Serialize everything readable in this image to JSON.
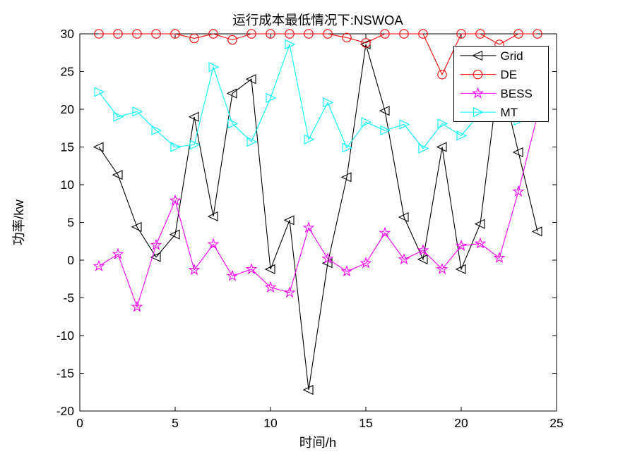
{
  "figure": {
    "background": "#ffffff"
  },
  "chart_data": {
    "type": "line",
    "title": "运行成本最低情况下:NSWOA",
    "xlabel": "时间/h",
    "ylabel": "功率/kw",
    "xlim": [
      0,
      25
    ],
    "ylim": [
      -20,
      30
    ],
    "xticks": [
      0,
      5,
      10,
      15,
      20,
      25
    ],
    "yticks": [
      -20,
      -15,
      -10,
      -5,
      0,
      5,
      10,
      15,
      20,
      25,
      30
    ],
    "grid": false,
    "axis_box": true,
    "legend_position": "top-right",
    "x": [
      1,
      2,
      3,
      4,
      5,
      6,
      7,
      8,
      9,
      10,
      11,
      12,
      13,
      14,
      15,
      16,
      17,
      18,
      19,
      20,
      21,
      22,
      23,
      24
    ],
    "series": [
      {
        "name": "Grid",
        "color": "#000000",
        "marker": "triangle-left",
        "values": [
          15,
          11.3,
          4.4,
          0.4,
          3.4,
          19,
          5.8,
          22.1,
          24,
          -1.2,
          5.3,
          -17.2,
          -0.4,
          11,
          28.6,
          19.8,
          5.7,
          0.1,
          15,
          -1.2,
          4.8,
          25,
          14.3,
          3.8
        ]
      },
      {
        "name": "DE",
        "color": "#ff0000",
        "marker": "circle",
        "values": [
          30,
          30,
          30,
          30,
          30,
          29.4,
          30,
          29.2,
          30,
          30,
          30,
          30,
          30,
          29.5,
          28.8,
          30,
          30,
          30,
          24.6,
          30,
          30,
          28.6,
          30,
          30
        ]
      },
      {
        "name": "BESS",
        "color": "#ff00ff",
        "marker": "star",
        "values": [
          -0.8,
          0.8,
          -6.2,
          2.0,
          7.9,
          -1.3,
          2.1,
          -2.1,
          -1.2,
          -3.6,
          -4.3,
          4.3,
          0.2,
          -1.5,
          -0.4,
          3.6,
          0.1,
          1.3,
          -1.2,
          1.9,
          2.2,
          0.3,
          9.1,
          19.2
        ]
      },
      {
        "name": "MT",
        "color": "#00ffff",
        "marker": "triangle-right",
        "values": [
          22.3,
          19,
          19.7,
          17.2,
          15,
          15.3,
          25.6,
          18.1,
          15.7,
          21.5,
          28.6,
          16,
          20.9,
          14.9,
          18.3,
          17.2,
          18,
          14.8,
          18.1,
          16.5,
          19.5,
          20,
          18.5,
          19.5
        ]
      }
    ],
    "legend": [
      "Grid",
      "DE",
      "BESS",
      "MT"
    ]
  }
}
